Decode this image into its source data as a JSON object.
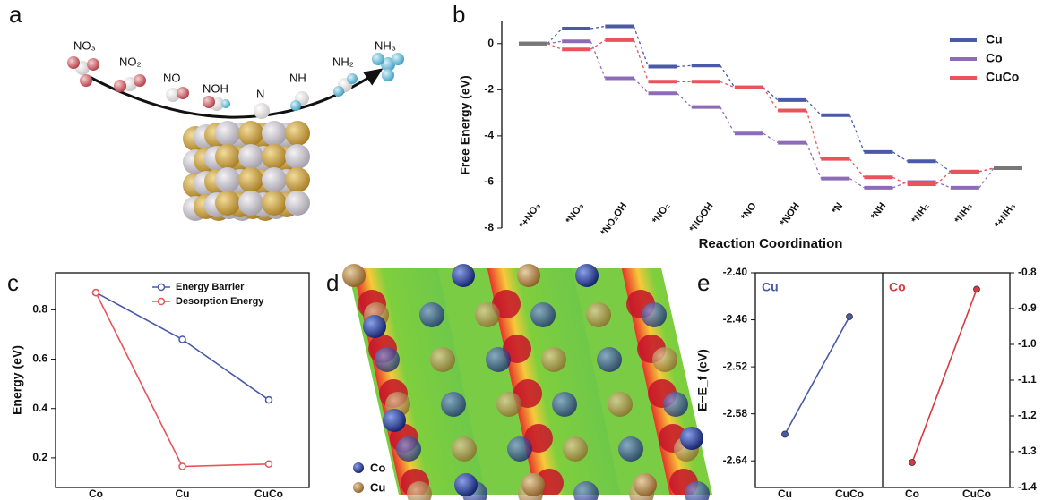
{
  "panel_labels": [
    "a",
    "b",
    "c",
    "d",
    "e"
  ],
  "illustration_a": {
    "species": [
      "NO₃",
      "NO₂",
      "NO",
      "NOH",
      "N",
      "NH",
      "NH₂",
      "NH₃"
    ]
  },
  "illustration_d": {
    "legend": [
      "Co",
      "Cu"
    ]
  },
  "chart_data": [
    {
      "type": "step",
      "ylabel": "Free Energy (eV)",
      "xlabel": "Reaction Coordination",
      "categories": [
        "*+NO₃",
        "*NO₃",
        "*NO₂OH",
        "*NO₂",
        "*NOOH",
        "*NO",
        "*NOH",
        "*N",
        "*NH",
        "*NH₂",
        "*NH₃",
        "*+NH₃"
      ],
      "ylim": [
        -8,
        1
      ],
      "yticks": [
        0,
        -2,
        -4,
        -6,
        -8
      ],
      "endpoint_color": "#777777",
      "legend": "upper right",
      "series": [
        {
          "name": "Cu",
          "color": "#4a5aa8",
          "values": [
            0,
            0.65,
            0.75,
            -1.0,
            -0.95,
            -1.9,
            -2.45,
            -3.1,
            -4.7,
            -5.1,
            -5.55,
            -5.4
          ]
        },
        {
          "name": "Co",
          "color": "#8e6bb8",
          "values": [
            0,
            0.1,
            -1.5,
            -2.15,
            -2.75,
            -3.9,
            -4.3,
            -5.85,
            -6.25,
            -6.0,
            -6.25,
            -5.4
          ]
        },
        {
          "name": "CuCo",
          "color": "#e8545a",
          "values": [
            0,
            -0.25,
            0.15,
            -1.65,
            -1.65,
            -1.9,
            -2.9,
            -5.0,
            -5.8,
            -6.1,
            -5.55,
            -5.4
          ]
        }
      ]
    },
    {
      "type": "line",
      "ylabel": "Energy (eV)",
      "categories": [
        "Co",
        "Cu",
        "CuCo"
      ],
      "ylim": [
        0.08,
        0.95
      ],
      "yticks": [
        0.2,
        0.4,
        0.6,
        0.8
      ],
      "legend": "upper right",
      "series": [
        {
          "name": "Energy Barrier",
          "color": "#4a5aa8",
          "values": [
            0.87,
            0.68,
            0.435
          ]
        },
        {
          "name": "Desorption Energy",
          "color": "#e8545a",
          "values": [
            0.87,
            0.165,
            0.175
          ]
        }
      ]
    },
    {
      "type": "paired_line",
      "ylabel": "E−E_f (eV)",
      "ylim": [
        -2.674,
        -2.4
      ],
      "yticks": [
        {
          "value": -2.4,
          "label": "-2.40"
        },
        {
          "value": -2.46,
          "label": "-2.46"
        },
        {
          "value": -2.52,
          "label": "-2.52"
        },
        {
          "value": -2.58,
          "label": "-2.58"
        },
        {
          "value": -2.64,
          "label": "-2.64"
        }
      ],
      "y2lim": [
        -1.4,
        -0.8
      ],
      "y2ticks": [
        -0.8,
        -0.9,
        {
          "value": -1.0,
          "label": "-1.0"
        },
        -1.1,
        -1.2,
        -1.3,
        -1.4
      ],
      "subplots": [
        {
          "title": "Cu",
          "categories": [
            "Cu",
            "CuCo"
          ],
          "color": "#4a5aa8",
          "axis": "y",
          "values": [
            -2.606,
            -2.456
          ]
        },
        {
          "title": "Co",
          "categories": [
            "Co",
            "CuCo"
          ],
          "color": "#d63a40",
          "axis": "y2",
          "values": [
            -1.33,
            -0.846
          ]
        }
      ]
    }
  ]
}
